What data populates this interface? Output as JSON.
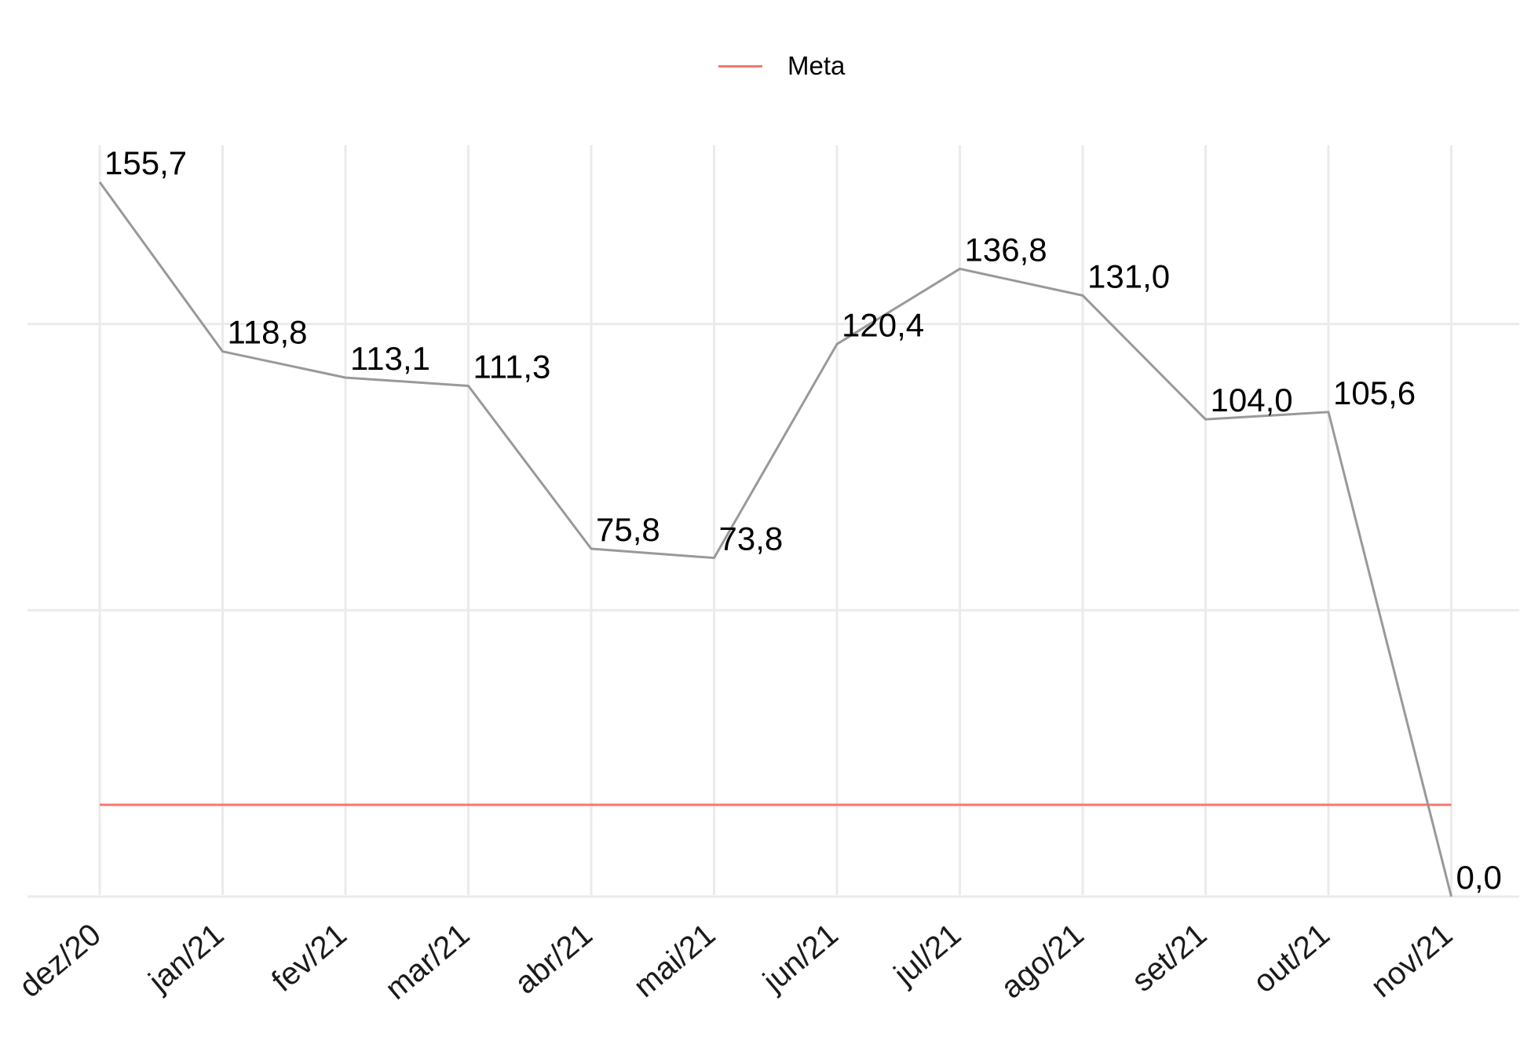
{
  "chart_data": {
    "type": "line",
    "categories": [
      "dez/20",
      "jan/21",
      "fev/21",
      "mar/21",
      "abr/21",
      "mai/21",
      "jun/21",
      "jul/21",
      "ago/21",
      "set/21",
      "out/21",
      "nov/21"
    ],
    "series": [
      {
        "values": [
          155.7,
          118.8,
          113.1,
          111.3,
          75.8,
          73.8,
          120.4,
          136.8,
          131.0,
          104.0,
          105.6,
          0.0
        ],
        "labels": [
          "155,7",
          "118,8",
          "113,1",
          "111,3",
          "75,8",
          "73,8",
          "120,4",
          "136,8",
          "131,0",
          "104,0",
          "105,6",
          "0,0"
        ],
        "color": "#999999"
      },
      {
        "name": "Meta",
        "value": 20,
        "color": "#F8766D"
      }
    ],
    "ylim": [
      0,
      166
    ],
    "grid": true,
    "legend": "top",
    "y_tick_labels_shown": false
  }
}
